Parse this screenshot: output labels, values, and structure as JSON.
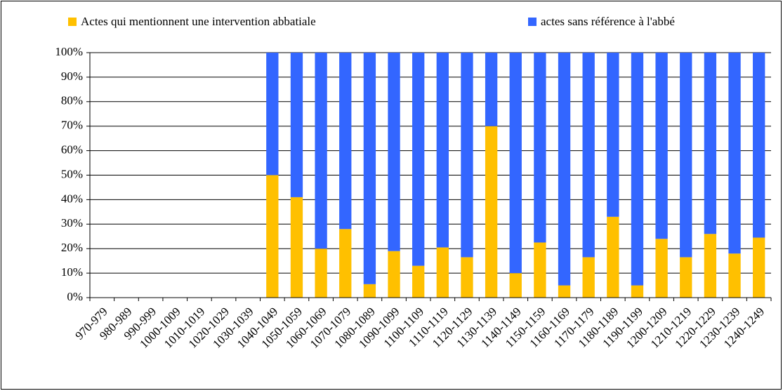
{
  "chart_data": {
    "type": "stacked_bar",
    "categories": [
      "970-979",
      "980-989",
      "990-999",
      "1000-1009",
      "1010-1019",
      "1020-1029",
      "1030-1039",
      "1040-1049",
      "1050-1059",
      "1060-1069",
      "1070-1079",
      "1080-1089",
      "1090-1099",
      "1100-1109",
      "1110-1119",
      "1120-1129",
      "1130-1139",
      "1140-1149",
      "1150-1159",
      "1160-1169",
      "1170-1179",
      "1180-1189",
      "1190-1199",
      "1200-1209",
      "1210-1219",
      "1220-1229",
      "1230-1239",
      "1240-1249"
    ],
    "series": [
      {
        "name": "Actes qui mentionnent une intervention abbatiale",
        "color": "#ffc000",
        "values": [
          null,
          null,
          null,
          null,
          null,
          null,
          null,
          50,
          41,
          20,
          28,
          5.5,
          19,
          13,
          20.5,
          16.5,
          70,
          10,
          22.5,
          5,
          16.5,
          33,
          5,
          24,
          16.5,
          26,
          18,
          24.5
        ]
      },
      {
        "name": "actes sans référence à l'abbé",
        "color": "#3366ff",
        "values": [
          null,
          null,
          null,
          null,
          null,
          null,
          null,
          50,
          59,
          80,
          72,
          94.5,
          81,
          87,
          79.5,
          83.5,
          30,
          90,
          77.5,
          95,
          83.5,
          67,
          95,
          76,
          83.5,
          74,
          82,
          75.5
        ]
      }
    ],
    "ylim": [
      0,
      100
    ],
    "yticks": [
      {
        "value": 0,
        "label": "0%"
      },
      {
        "value": 10,
        "label": "10%"
      },
      {
        "value": 20,
        "label": "20%"
      },
      {
        "value": 30,
        "label": "30%"
      },
      {
        "value": 40,
        "label": "40%"
      },
      {
        "value": 50,
        "label": "50%"
      },
      {
        "value": 60,
        "label": "60%"
      },
      {
        "value": 70,
        "label": "70%"
      },
      {
        "value": 80,
        "label": "80%"
      },
      {
        "value": 90,
        "label": "90%"
      },
      {
        "value": 100,
        "label": "100%"
      }
    ],
    "grid": true,
    "legend": "top"
  }
}
